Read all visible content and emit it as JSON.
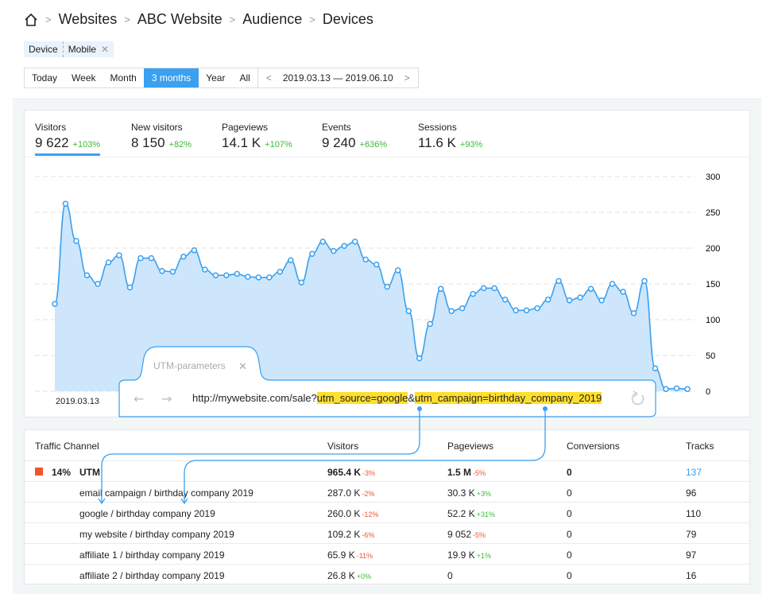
{
  "breadcrumb": {
    "home_icon": "home-icon",
    "items": [
      "Websites",
      "ABC Website",
      "Audience",
      "Devices"
    ]
  },
  "filter": {
    "key": "Device",
    "value": "Mobile"
  },
  "periods": {
    "items": [
      "Today",
      "Week",
      "Month",
      "3 months",
      "Year",
      "All"
    ],
    "active": "3 months",
    "range": "2019.03.13 — 2019.06.10"
  },
  "stats": [
    {
      "label": "Visitors",
      "value": "9 622",
      "change": "+103%",
      "active": true
    },
    {
      "label": "New visitors",
      "value": "8 150",
      "change": "+82%"
    },
    {
      "label": "Pageviews",
      "value": "14.1 K",
      "change": "+107%"
    },
    {
      "label": "Events",
      "value": "9 240",
      "change": "+636%"
    },
    {
      "label": "Sessions",
      "value": "11.6 K",
      "change": "+93%"
    }
  ],
  "chart_data": {
    "type": "area",
    "x_start_label": "2019.03.13",
    "yticks": [
      "0",
      "50",
      "100",
      "150",
      "200",
      "250",
      "300"
    ],
    "ylim": [
      0,
      300
    ],
    "grid": true,
    "color": "#3aa0f0",
    "values": [
      122,
      262,
      210,
      162,
      150,
      180,
      190,
      145,
      186,
      186,
      168,
      167,
      188,
      197,
      170,
      162,
      162,
      164,
      160,
      159,
      159,
      167,
      183,
      152,
      192,
      209,
      196,
      203,
      209,
      184,
      177,
      146,
      169,
      112,
      46,
      94,
      143,
      112,
      116,
      136,
      144,
      144,
      128,
      113,
      113,
      116,
      128,
      154,
      127,
      131,
      143,
      127,
      150,
      139,
      109,
      154,
      32,
      3,
      4,
      3
    ]
  },
  "utm_popup": {
    "title": "UTM-parameters",
    "url_base": "http://mywebsite.com/sale?",
    "param1": "utm_source=google",
    "amp": "&",
    "param2": "utm_campaign=birthday_company_2019",
    "highlight": "#ffdf2e"
  },
  "table": {
    "headers": [
      "Traffic Channel",
      "Visitors",
      "Pageviews",
      "Conversions",
      "Tracks"
    ],
    "group": {
      "pct": "14%",
      "name": "UTM",
      "visitors": "965.4 K",
      "visitors_chg": "-3%",
      "pageviews": "1.5 M",
      "pageviews_chg": "-5%",
      "conversions": "0",
      "tracks": "137",
      "color": "#f0562e"
    },
    "rows": [
      {
        "name": "email campaign / birthday company 2019",
        "visitors": "287.0 K",
        "visitors_chg": "-2%",
        "pageviews": "30.3 K",
        "pageviews_chg": "+3%",
        "conversions": "0",
        "tracks": "96"
      },
      {
        "name": "google / birthday company 2019",
        "visitors": "260.0 K",
        "visitors_chg": "-12%",
        "pageviews": "52.2 K",
        "pageviews_chg": "+31%",
        "conversions": "0",
        "tracks": "110"
      },
      {
        "name": "my website / birthday company 2019",
        "visitors": "109.2 K",
        "visitors_chg": "-6%",
        "pageviews": "9 052",
        "pageviews_chg": "-5%",
        "conversions": "0",
        "tracks": "79"
      },
      {
        "name": "affiliate 1 / birthday company 2019",
        "visitors": "65.9 K",
        "visitors_chg": "-11%",
        "pageviews": "19.9 K",
        "pageviews_chg": "+1%",
        "conversions": "0",
        "tracks": "97"
      },
      {
        "name": "affiliate 2 / birthday company 2019",
        "visitors": "26.8 K",
        "visitors_chg": "+0%",
        "pageviews": "0",
        "pageviews_chg": "",
        "conversions": "0",
        "tracks": "16"
      }
    ]
  }
}
